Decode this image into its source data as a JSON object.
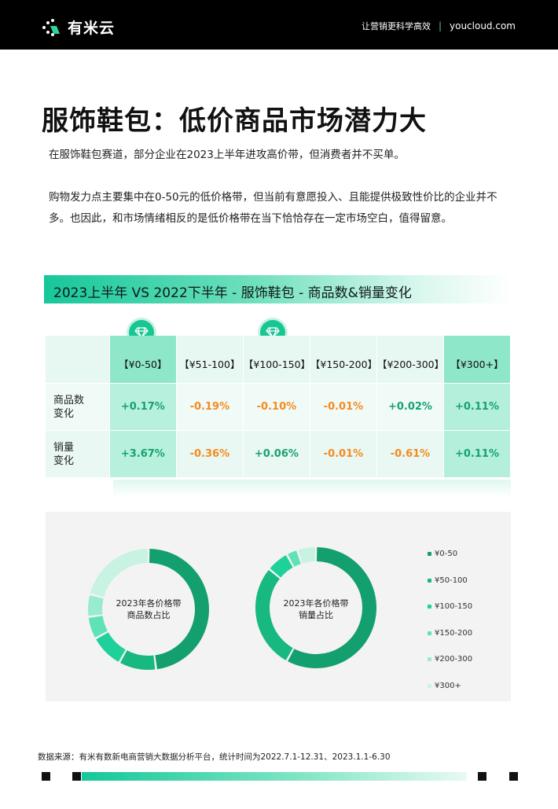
{
  "header": {
    "logo_text": "有米云",
    "slogan": "让营销更科学高效",
    "divider": "|",
    "url": "youcloud.com"
  },
  "title": "服饰鞋包：低价商品市场潜力大",
  "paragraphs": [
    "在服饰鞋包赛道，部分企业在2023上半年进攻高价带，但消费者并不买单。",
    "购物发力点主要集中在0-50元的低价格带，但当前有意愿投入、且能提供极致性价比的企业并不多。也因此，和市场情绪相反的是低价格带在当下恰恰存在一定市场空白，值得留意。"
  ],
  "section_title": "2023上半年 VS 2022下半年 - 服饰鞋包 - 商品数&销量变化",
  "table": {
    "columns": [
      "【¥0-50】",
      "【¥51-100】",
      "【¥100-150】",
      "【¥150-200】",
      "【¥200-300】",
      "【¥300+】"
    ],
    "rows": [
      {
        "label": "商品数变化",
        "values": [
          "+0.17%",
          "-0.19%",
          "-0.10%",
          "-0.01%",
          "+0.02%",
          "+0.11%"
        ]
      },
      {
        "label": "销量变化",
        "values": [
          "+3.67%",
          "-0.36%",
          "+0.06%",
          "-0.01%",
          "-0.61%",
          "+0.11%"
        ]
      }
    ],
    "highlight_icon": "diamond-icon"
  },
  "chart_data": [
    {
      "type": "pie",
      "title": "2023年各价格带商品数占比",
      "categories": [
        "¥0-50",
        "¥50-100",
        "¥100-150",
        "¥150-200",
        "¥200-300",
        "¥300+"
      ],
      "values": [
        48,
        10,
        9,
        6,
        6,
        21
      ]
    },
    {
      "type": "pie",
      "title": "2023年各价格带销量占比",
      "categories": [
        "¥0-50",
        "¥50-100",
        "¥100-150",
        "¥150-200",
        "¥200-300",
        "¥300+"
      ],
      "values": [
        58,
        28,
        6,
        3,
        0,
        5
      ]
    }
  ],
  "legend": [
    "¥0-50",
    "¥50-100",
    "¥100-150",
    "¥150-200",
    "¥200-300",
    "¥300+"
  ],
  "colors": {
    "brand": "#16c79a",
    "positive": "#16a26e",
    "negative": "#f58a1f",
    "series": [
      "#139f6e",
      "#18b881",
      "#1ed19a",
      "#5ee2b6",
      "#98ebce",
      "#c8f2e2"
    ]
  },
  "source": "数据来源：有米有数新电商营销大数据分析平台，统计时间为2022.7.1-12.31、2023.1.1-6.30"
}
